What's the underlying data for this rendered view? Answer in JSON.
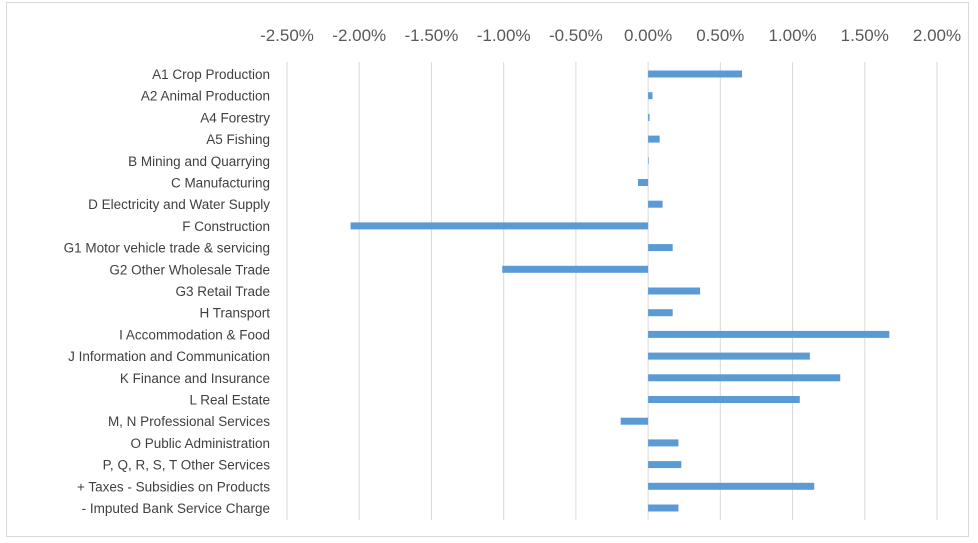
{
  "colors": {
    "bar": "#5b9bd5",
    "grid": "#d9d9d9",
    "text": "#404040",
    "tick_text": "#595959"
  },
  "chart_data": {
    "type": "bar",
    "orientation": "horizontal",
    "title": "",
    "xlabel": "",
    "ylabel": "",
    "xlim": [
      -0.025,
      0.02
    ],
    "x_ticks": [
      -0.025,
      -0.02,
      -0.015,
      -0.01,
      -0.005,
      0,
      0.005,
      0.01,
      0.015,
      0.02
    ],
    "x_tick_labels": [
      "-2.50%",
      "-2.00%",
      "-1.50%",
      "-1.00%",
      "-0.50%",
      "0.00%",
      "0.50%",
      "1.00%",
      "1.50%",
      "2.00%"
    ],
    "x_axis_position": "top",
    "grid": "vertical",
    "legend": "none",
    "categories": [
      "A1 Crop Production",
      "A2 Animal Production",
      "A4 Forestry",
      "A5 Fishing",
      "B  Mining and Quarrying",
      "C Manufacturing",
      "D Electricity and Water Supply",
      "F Construction",
      "G1 Motor vehicle trade & servicing",
      "G2 Other Wholesale Trade",
      "G3 Retail Trade",
      "H Transport",
      "I Accommodation & Food",
      "J Information and Communication",
      "K Finance and Insurance",
      "L Real Estate",
      "M, N Professional Services",
      "O Public Administration",
      "P, Q, R, S, T Other Services",
      "+ Taxes - Subsidies on Products",
      "- Imputed Bank Service Charge"
    ],
    "values": [
      0.0065,
      0.0003,
      0.0001,
      0.0008,
      0.0,
      -0.0007,
      0.001,
      -0.0206,
      0.0017,
      -0.0101,
      0.0036,
      0.0017,
      0.0167,
      0.0112,
      0.0133,
      0.0105,
      -0.0019,
      0.0021,
      0.0023,
      0.0115,
      0.0021
    ]
  }
}
